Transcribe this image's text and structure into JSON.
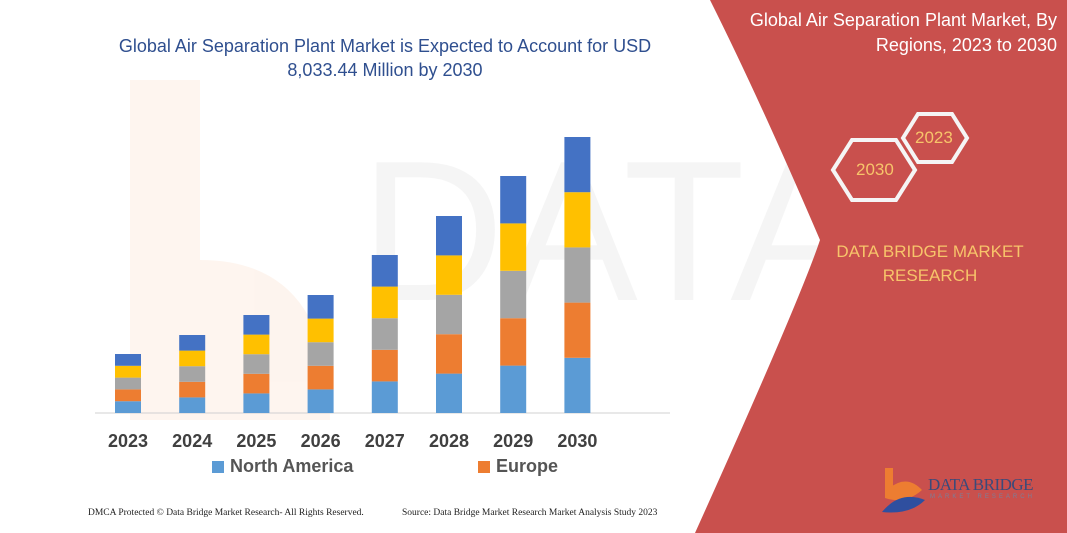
{
  "title": "Global Air Separation Plant Market is Expected to Account for USD 8,033.44 Million by 2030",
  "side_panel": {
    "title": "Global Air Separation Plant Market, By Regions, 2023 to 2030",
    "hex_start": "2023",
    "hex_end": "2030",
    "brand": "DATA BRIDGE MARKET RESEARCH",
    "logo_text": "DATA BRIDGE",
    "logo_sub": "MARKET RESEARCH",
    "color": "#c9504d"
  },
  "footer": {
    "left": "DMCA Protected © Data Bridge Market Research- All Rights Reserved.",
    "right": "Source: Data Bridge Market Research Market Analysis Study 2023"
  },
  "chart_data": {
    "type": "bar",
    "stacked": true,
    "categories": [
      "2023",
      "2024",
      "2025",
      "2026",
      "2027",
      "2028",
      "2029",
      "2030"
    ],
    "series": [
      {
        "name": "North America",
        "color": "#5b9bd5",
        "values": [
          11.8,
          15.6,
          19.6,
          23.6,
          31.6,
          39.4,
          47.4,
          55.2
        ]
      },
      {
        "name": "Europe",
        "color": "#ed7d31",
        "values": [
          11.8,
          15.6,
          19.6,
          23.6,
          31.6,
          39.4,
          47.4,
          55.2
        ]
      },
      {
        "color": "#a5a5a5",
        "values": [
          11.8,
          15.6,
          19.6,
          23.6,
          31.6,
          39.4,
          47.4,
          55.2
        ]
      },
      {
        "color": "#ffc000",
        "values": [
          11.8,
          15.6,
          19.6,
          23.6,
          31.6,
          39.4,
          47.4,
          55.2
        ]
      },
      {
        "color": "#4472c4",
        "values": [
          11.8,
          15.6,
          19.6,
          23.6,
          31.6,
          39.4,
          47.4,
          55.2
        ]
      }
    ],
    "legend": [
      "North America",
      "Europe"
    ],
    "legend_position": "bottom",
    "grid": false,
    "y_axis_shown": false
  }
}
